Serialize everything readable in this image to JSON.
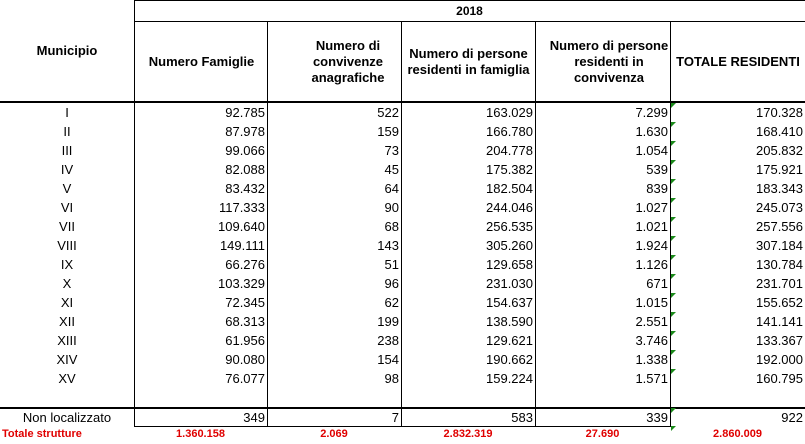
{
  "table": {
    "year_header": "2018",
    "headers": {
      "municipio": "Municipio",
      "famiglie": "Numero Famiglie",
      "convivenze": "Numero di convivenze anagrafiche",
      "persone_famiglia": "Numero di persone residenti in famiglia",
      "persone_convivenza": "Numero di persone residenti in convivenza",
      "totale": "TOTALE RESIDENTI"
    },
    "rows": [
      {
        "municipio": "I",
        "famiglie": "92.785",
        "convivenze": "522",
        "persone_famiglia": "163.029",
        "persone_convivenza": "7.299",
        "totale": "170.328"
      },
      {
        "municipio": "II",
        "famiglie": "87.978",
        "convivenze": "159",
        "persone_famiglia": "166.780",
        "persone_convivenza": "1.630",
        "totale": "168.410"
      },
      {
        "municipio": "III",
        "famiglie": "99.066",
        "convivenze": "73",
        "persone_famiglia": "204.778",
        "persone_convivenza": "1.054",
        "totale": "205.832"
      },
      {
        "municipio": "IV",
        "famiglie": "82.088",
        "convivenze": "45",
        "persone_famiglia": "175.382",
        "persone_convivenza": "539",
        "totale": "175.921"
      },
      {
        "municipio": "V",
        "famiglie": "83.432",
        "convivenze": "64",
        "persone_famiglia": "182.504",
        "persone_convivenza": "839",
        "totale": "183.343"
      },
      {
        "municipio": "VI",
        "famiglie": "117.333",
        "convivenze": "90",
        "persone_famiglia": "244.046",
        "persone_convivenza": "1.027",
        "totale": "245.073"
      },
      {
        "municipio": "VII",
        "famiglie": "109.640",
        "convivenze": "68",
        "persone_famiglia": "256.535",
        "persone_convivenza": "1.021",
        "totale": "257.556"
      },
      {
        "municipio": "VIII",
        "famiglie": "149.111",
        "convivenze": "143",
        "persone_famiglia": "305.260",
        "persone_convivenza": "1.924",
        "totale": "307.184"
      },
      {
        "municipio": "IX",
        "famiglie": "66.276",
        "convivenze": "51",
        "persone_famiglia": "129.658",
        "persone_convivenza": "1.126",
        "totale": "130.784"
      },
      {
        "municipio": "X",
        "famiglie": "103.329",
        "convivenze": "96",
        "persone_famiglia": "231.030",
        "persone_convivenza": "671",
        "totale": "231.701"
      },
      {
        "municipio": "XI",
        "famiglie": "72.345",
        "convivenze": "62",
        "persone_famiglia": "154.637",
        "persone_convivenza": "1.015",
        "totale": "155.652"
      },
      {
        "municipio": "XII",
        "famiglie": "68.313",
        "convivenze": "199",
        "persone_famiglia": "138.590",
        "persone_convivenza": "2.551",
        "totale": "141.141"
      },
      {
        "municipio": "XIII",
        "famiglie": "61.956",
        "convivenze": "238",
        "persone_famiglia": "129.621",
        "persone_convivenza": "3.746",
        "totale": "133.367"
      },
      {
        "municipio": "XIV",
        "famiglie": "90.080",
        "convivenze": "154",
        "persone_famiglia": "190.662",
        "persone_convivenza": "1.338",
        "totale": "192.000"
      },
      {
        "municipio": "XV",
        "famiglie": "76.077",
        "convivenze": "98",
        "persone_famiglia": "159.224",
        "persone_convivenza": "1.571",
        "totale": "160.795"
      }
    ],
    "non_localizzato": {
      "municipio": "Non localizzato",
      "famiglie": "349",
      "convivenze": "7",
      "persone_famiglia": "583",
      "persone_convivenza": "339",
      "totale": "922"
    },
    "totals": {
      "municipio": "Totale strutture",
      "famiglie": "1.360.158",
      "convivenze": "2.069",
      "persone_famiglia": "2.832.319",
      "persone_convivenza": "27.690",
      "totale": "2.860.009"
    },
    "colors": {
      "totals_text": "#e00000",
      "comment_marker": "#1a8a1a",
      "grid": "#000000"
    }
  }
}
